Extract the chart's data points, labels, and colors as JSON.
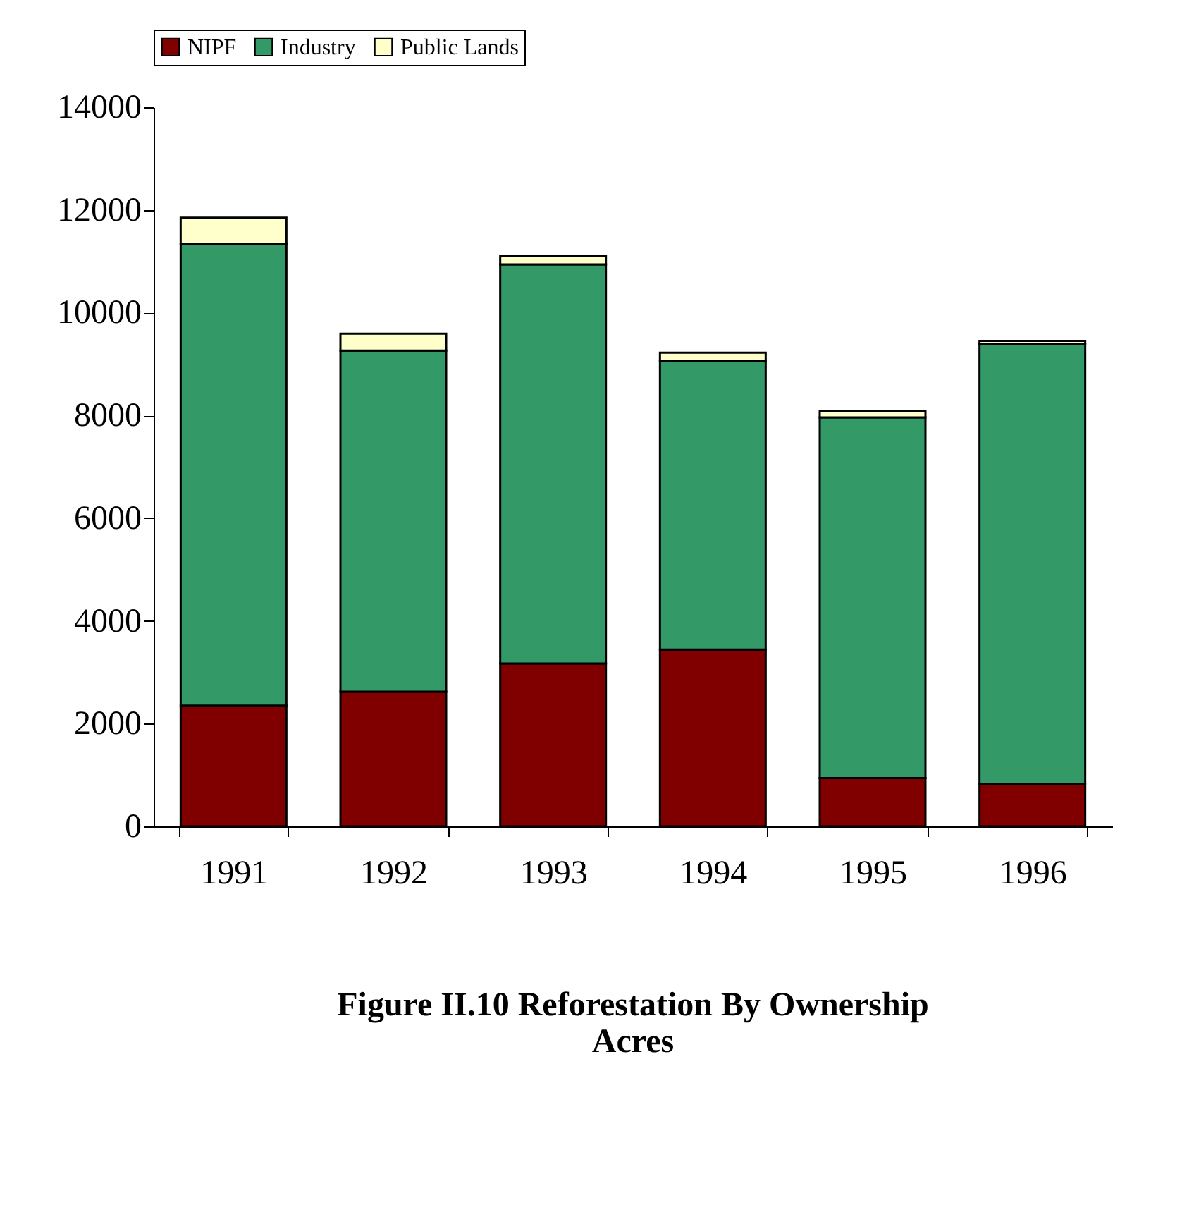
{
  "chart_data": {
    "type": "bar",
    "stacked": true,
    "title": "Figure II.10 Reforestation By Ownership\nAcres",
    "categories": [
      "1991",
      "1992",
      "1993",
      "1994",
      "1995",
      "1996"
    ],
    "series": [
      {
        "name": "NIPF",
        "color": "#800000",
        "values": [
          2350,
          2620,
          3170,
          3440,
          940,
          830
        ]
      },
      {
        "name": "Industry",
        "color": "#339966",
        "values": [
          8980,
          6640,
          7770,
          5620,
          7020,
          8550
        ]
      },
      {
        "name": "Public Lands",
        "color": "#ffffcc",
        "values": [
          520,
          330,
          170,
          160,
          120,
          70
        ]
      }
    ],
    "ylim": [
      0,
      14000
    ],
    "yticks": [
      0,
      2000,
      4000,
      6000,
      8000,
      10000,
      12000,
      14000
    ],
    "grid": false,
    "legend": "top"
  }
}
